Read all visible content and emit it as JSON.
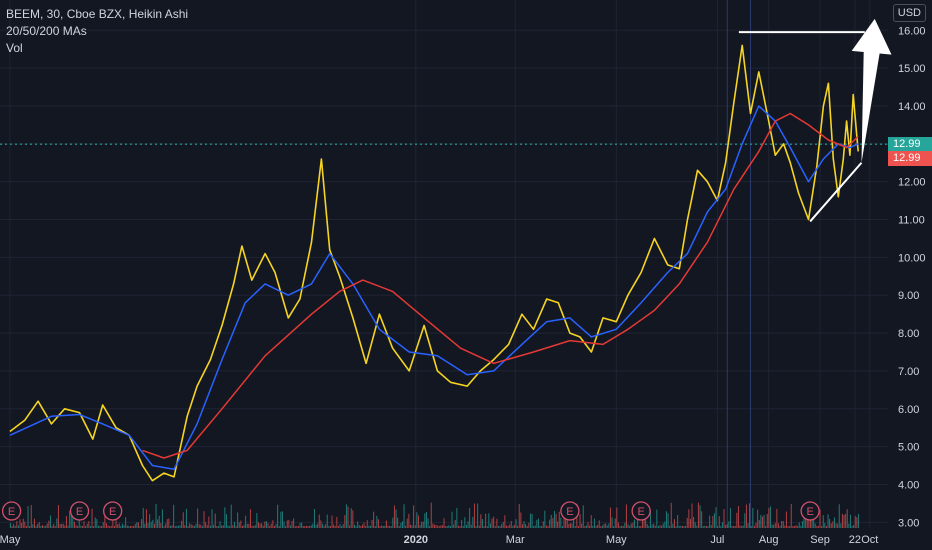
{
  "legend": {
    "title": "BEEM, 30, Cboe BZX, Heikin Ashi",
    "indicators": "20/50/200 MAs",
    "volume": "Vol"
  },
  "currency": "USD",
  "price_badges": [
    {
      "label": "12.99",
      "value": 12.99,
      "color": "#26a69a"
    },
    {
      "label": "12.99",
      "value": 12.99,
      "color": "#ef5350"
    }
  ],
  "earnings_marker_label": "E",
  "chart_data": {
    "type": "line",
    "xlabel": "",
    "ylabel": "",
    "ylim": [
      2.85,
      16.8
    ],
    "xlim": [
      "2019-04-25",
      "2020-10-12"
    ],
    "grid": true,
    "y_ticks": [
      3.0,
      4.0,
      5.0,
      6.0,
      7.0,
      8.0,
      9.0,
      10.0,
      11.0,
      12.0,
      13.0,
      14.0,
      15.0,
      16.0
    ],
    "y_tick_labels": [
      "3.00",
      "4.00",
      "5.00",
      "6.00",
      "7.00",
      "8.00",
      "9.00",
      "10.00",
      "11.00",
      "12.00",
      "13.00",
      "14.00",
      "15.00",
      "16.00"
    ],
    "x_ticks": [
      {
        "label": "May",
        "date": "2019-05-01"
      },
      {
        "label": "2020",
        "date": "2020-01-01"
      },
      {
        "label": "Mar",
        "date": "2020-03-01"
      },
      {
        "label": "May",
        "date": "2020-05-01"
      },
      {
        "label": "Jul",
        "date": "2020-07-01"
      },
      {
        "label": "Aug",
        "date": "2020-08-01"
      },
      {
        "label": "Sep",
        "date": "2020-09-01"
      },
      {
        "label": "22",
        "date": "2020-09-22"
      },
      {
        "label": "Oct",
        "date": "2020-10-01"
      }
    ],
    "current_price": 12.99,
    "series": [
      {
        "color": "#f5d423",
        "points": [
          [
            "2019-05-01",
            5.4
          ],
          [
            "2019-05-10",
            5.7
          ],
          [
            "2019-05-18",
            6.2
          ],
          [
            "2019-05-26",
            5.6
          ],
          [
            "2019-06-03",
            6.0
          ],
          [
            "2019-06-12",
            5.9
          ],
          [
            "2019-06-20",
            5.2
          ],
          [
            "2019-06-26",
            6.1
          ],
          [
            "2019-07-04",
            5.5
          ],
          [
            "2019-07-12",
            5.3
          ],
          [
            "2019-07-20",
            4.5
          ],
          [
            "2019-07-26",
            4.1
          ],
          [
            "2019-08-02",
            4.3
          ],
          [
            "2019-08-08",
            4.2
          ],
          [
            "2019-08-16",
            5.8
          ],
          [
            "2019-08-22",
            6.6
          ],
          [
            "2019-08-30",
            7.3
          ],
          [
            "2019-09-06",
            8.2
          ],
          [
            "2019-09-13",
            9.3
          ],
          [
            "2019-09-18",
            10.3
          ],
          [
            "2019-09-24",
            9.4
          ],
          [
            "2019-10-02",
            10.1
          ],
          [
            "2019-10-08",
            9.6
          ],
          [
            "2019-10-16",
            8.4
          ],
          [
            "2019-10-23",
            8.9
          ],
          [
            "2019-10-30",
            10.4
          ],
          [
            "2019-11-05",
            12.6
          ],
          [
            "2019-11-10",
            10.2
          ],
          [
            "2019-11-16",
            9.5
          ],
          [
            "2019-11-24",
            8.4
          ],
          [
            "2019-12-02",
            7.2
          ],
          [
            "2019-12-10",
            8.5
          ],
          [
            "2019-12-18",
            7.6
          ],
          [
            "2019-12-28",
            7.0
          ],
          [
            "2020-01-06",
            8.2
          ],
          [
            "2020-01-14",
            7.0
          ],
          [
            "2020-01-22",
            6.7
          ],
          [
            "2020-02-01",
            6.6
          ],
          [
            "2020-02-09",
            7.0
          ],
          [
            "2020-02-17",
            7.3
          ],
          [
            "2020-02-26",
            7.7
          ],
          [
            "2020-03-05",
            8.5
          ],
          [
            "2020-03-12",
            8.1
          ],
          [
            "2020-03-20",
            8.9
          ],
          [
            "2020-03-27",
            8.8
          ],
          [
            "2020-04-03",
            8.0
          ],
          [
            "2020-04-09",
            7.9
          ],
          [
            "2020-04-16",
            7.5
          ],
          [
            "2020-04-23",
            8.4
          ],
          [
            "2020-05-01",
            8.3
          ],
          [
            "2020-05-08",
            9.0
          ],
          [
            "2020-05-16",
            9.6
          ],
          [
            "2020-05-24",
            10.5
          ],
          [
            "2020-06-01",
            9.8
          ],
          [
            "2020-06-08",
            9.7
          ],
          [
            "2020-06-13",
            11.0
          ],
          [
            "2020-06-19",
            12.3
          ],
          [
            "2020-06-25",
            12.0
          ],
          [
            "2020-07-01",
            11.5
          ],
          [
            "2020-07-06",
            12.5
          ],
          [
            "2020-07-11",
            14.1
          ],
          [
            "2020-07-16",
            15.6
          ],
          [
            "2020-07-21",
            13.8
          ],
          [
            "2020-07-26",
            14.9
          ],
          [
            "2020-08-01",
            13.6
          ],
          [
            "2020-08-05",
            12.7
          ],
          [
            "2020-08-10",
            13.0
          ],
          [
            "2020-08-14",
            12.5
          ],
          [
            "2020-08-19",
            11.7
          ],
          [
            "2020-08-25",
            11.0
          ],
          [
            "2020-08-30",
            12.4
          ],
          [
            "2020-09-03",
            14.0
          ],
          [
            "2020-09-06",
            14.6
          ],
          [
            "2020-09-09",
            12.6
          ],
          [
            "2020-09-12",
            11.6
          ],
          [
            "2020-09-15",
            12.6
          ],
          [
            "2020-09-17",
            13.6
          ],
          [
            "2020-09-19",
            12.7
          ],
          [
            "2020-09-21",
            14.3
          ],
          [
            "2020-09-23",
            13.3
          ],
          [
            "2020-09-24",
            12.8
          ]
        ]
      },
      {
        "color": "#2962ff",
        "points": [
          [
            "2019-05-01",
            5.3
          ],
          [
            "2019-05-26",
            5.8
          ],
          [
            "2019-06-12",
            5.85
          ],
          [
            "2019-06-26",
            5.6
          ],
          [
            "2019-07-12",
            5.3
          ],
          [
            "2019-07-26",
            4.5
          ],
          [
            "2019-08-08",
            4.4
          ],
          [
            "2019-08-22",
            5.6
          ],
          [
            "2019-09-06",
            7.3
          ],
          [
            "2019-09-20",
            8.8
          ],
          [
            "2019-10-02",
            9.3
          ],
          [
            "2019-10-16",
            9.0
          ],
          [
            "2019-10-30",
            9.3
          ],
          [
            "2019-11-10",
            10.1
          ],
          [
            "2019-11-24",
            9.3
          ],
          [
            "2019-12-10",
            8.1
          ],
          [
            "2019-12-28",
            7.5
          ],
          [
            "2020-01-14",
            7.4
          ],
          [
            "2020-02-01",
            6.9
          ],
          [
            "2020-02-17",
            7.0
          ],
          [
            "2020-03-05",
            7.7
          ],
          [
            "2020-03-20",
            8.3
          ],
          [
            "2020-04-03",
            8.4
          ],
          [
            "2020-04-16",
            7.9
          ],
          [
            "2020-05-01",
            8.1
          ],
          [
            "2020-05-16",
            8.8
          ],
          [
            "2020-06-01",
            9.6
          ],
          [
            "2020-06-13",
            10.1
          ],
          [
            "2020-06-25",
            11.2
          ],
          [
            "2020-07-06",
            11.8
          ],
          [
            "2020-07-16",
            13.0
          ],
          [
            "2020-07-26",
            14.0
          ],
          [
            "2020-08-05",
            13.6
          ],
          [
            "2020-08-14",
            12.9
          ],
          [
            "2020-08-25",
            12.0
          ],
          [
            "2020-09-03",
            12.6
          ],
          [
            "2020-09-12",
            13.0
          ],
          [
            "2020-09-19",
            12.9
          ],
          [
            "2020-09-24",
            13.0
          ]
        ]
      },
      {
        "color": "#e53935",
        "points": [
          [
            "2019-07-20",
            4.9
          ],
          [
            "2019-08-02",
            4.7
          ],
          [
            "2019-08-16",
            4.9
          ],
          [
            "2019-09-06",
            6.0
          ],
          [
            "2019-10-02",
            7.4
          ],
          [
            "2019-10-30",
            8.5
          ],
          [
            "2019-11-16",
            9.1
          ],
          [
            "2019-11-30",
            9.4
          ],
          [
            "2019-12-18",
            9.1
          ],
          [
            "2020-01-06",
            8.4
          ],
          [
            "2020-01-28",
            7.6
          ],
          [
            "2020-02-17",
            7.2
          ],
          [
            "2020-03-12",
            7.5
          ],
          [
            "2020-04-03",
            7.8
          ],
          [
            "2020-04-23",
            7.7
          ],
          [
            "2020-05-08",
            8.1
          ],
          [
            "2020-05-24",
            8.6
          ],
          [
            "2020-06-08",
            9.3
          ],
          [
            "2020-06-25",
            10.4
          ],
          [
            "2020-07-11",
            11.8
          ],
          [
            "2020-07-26",
            12.8
          ],
          [
            "2020-08-05",
            13.6
          ],
          [
            "2020-08-14",
            13.8
          ],
          [
            "2020-08-25",
            13.5
          ],
          [
            "2020-09-06",
            13.1
          ],
          [
            "2020-09-17",
            12.9
          ],
          [
            "2020-09-24",
            13.2
          ]
        ]
      }
    ],
    "annotations": [
      {
        "type": "resistance_line",
        "from": [
          "2020-07-14",
          15.95
        ],
        "to": [
          "2020-09-28",
          15.95
        ]
      },
      {
        "type": "support_line",
        "from": [
          "2020-08-26",
          10.95
        ],
        "to": [
          "2020-09-26",
          12.5
        ]
      },
      {
        "type": "breakout_arrow",
        "from": [
          "2020-09-26",
          12.5
        ],
        "to": [
          "2020-10-04",
          16.3
        ]
      }
    ],
    "earnings_dates": [
      "2019-05-02",
      "2019-06-12",
      "2019-07-02",
      "2020-04-03",
      "2020-05-16",
      "2020-08-26"
    ],
    "vertical_markers": [
      "2020-07-07",
      "2020-07-21"
    ]
  }
}
